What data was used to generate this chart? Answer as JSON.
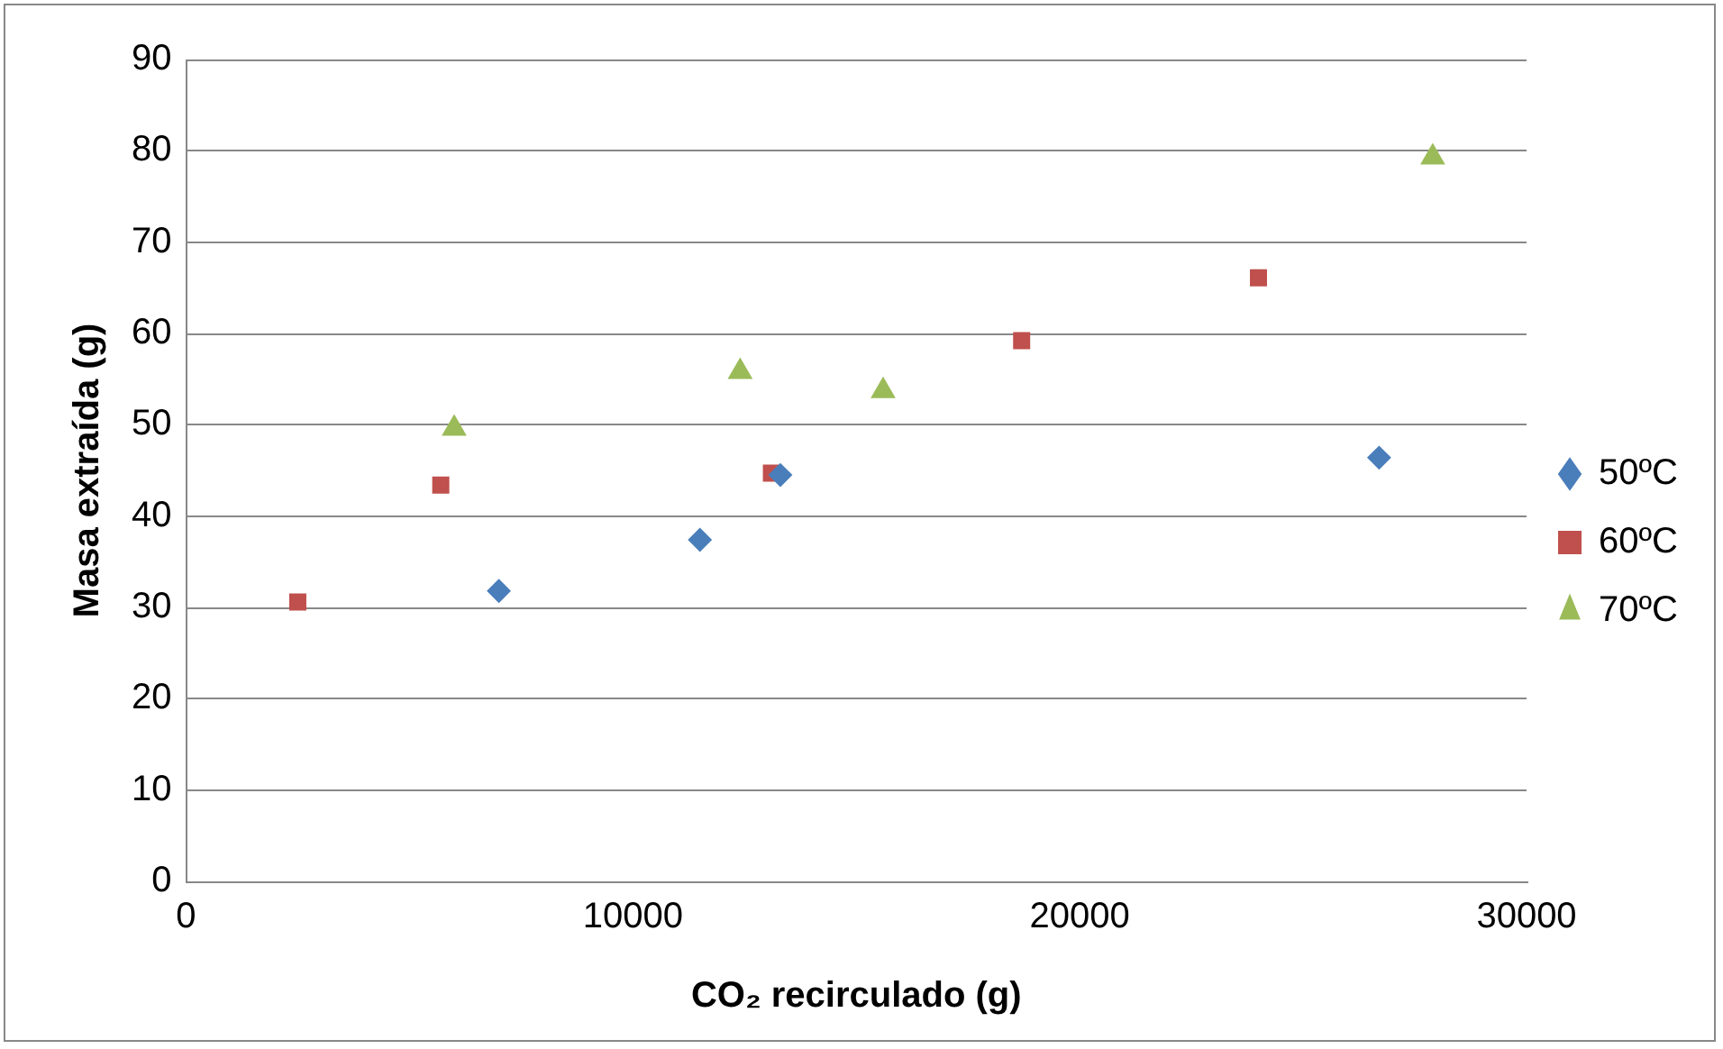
{
  "chart_data": {
    "type": "scatter",
    "xlabel": "CO₂ recirculado (g)",
    "ylabel": "Masa extraída (g)",
    "xlim": [
      0,
      30000
    ],
    "xticks": [
      0,
      10000,
      20000,
      30000
    ],
    "ylim": [
      0,
      90
    ],
    "yticks": [
      0,
      10,
      20,
      30,
      40,
      50,
      60,
      70,
      80,
      90
    ],
    "grid": "y",
    "legend": "right",
    "series": [
      {
        "name": "50ºC",
        "color": "#4a7ebb",
        "marker": "diamond",
        "x": [
          7000,
          11500,
          13300,
          26700
        ],
        "values": [
          31.8,
          37.4,
          44.5,
          46.4
        ]
      },
      {
        "name": "60ºC",
        "color": "#c0504d",
        "marker": "square",
        "x": [
          2500,
          5700,
          13100,
          18700,
          24000
        ],
        "values": [
          30.6,
          43.4,
          44.7,
          59.2,
          66.1
        ]
      },
      {
        "name": "70ºC",
        "color": "#9bbb59",
        "marker": "triangle",
        "x": [
          6000,
          12400,
          15600,
          27900
        ],
        "values": [
          49.6,
          55.8,
          53.7,
          79.3
        ]
      }
    ]
  }
}
